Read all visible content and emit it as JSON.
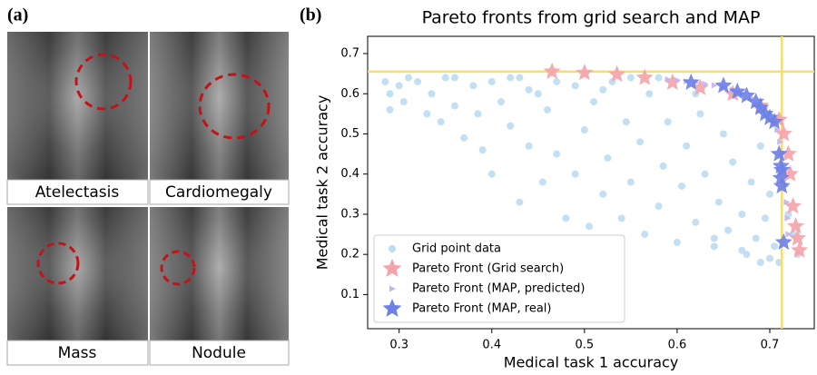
{
  "panel_a": {
    "label": "(a)",
    "images": [
      {
        "caption": "Atelectasis"
      },
      {
        "caption": "Cardiomegaly"
      },
      {
        "caption": "Mass"
      },
      {
        "caption": "Nodule"
      }
    ]
  },
  "chart_data": {
    "type": "scatter",
    "panel_label": "(b)",
    "title": "Pareto fronts from grid search and MAP",
    "x_label": "Medical task 1 accuracy",
    "y_label": "Medical task 2 accuracy",
    "xlim": [
      0.266,
      0.748
    ],
    "ylim": [
      0.015,
      0.743
    ],
    "xticks": [
      0.3,
      0.4,
      0.5,
      0.6,
      0.7
    ],
    "yticks": [
      0.1,
      0.2,
      0.3,
      0.4,
      0.5,
      0.6,
      0.7
    ],
    "grid": false,
    "legend": "lower left",
    "reference_lines": [
      {
        "axis": "x",
        "value": 0.713,
        "color": "#f7dc6f"
      },
      {
        "axis": "y",
        "value": 0.655,
        "color": "#f7dc6f"
      }
    ],
    "series": [
      {
        "name": "Grid point data",
        "color": "#bcdcf3",
        "marker": "circle",
        "x": [
          0.285,
          0.29,
          0.29,
          0.3,
          0.305,
          0.31,
          0.32,
          0.33,
          0.335,
          0.345,
          0.35,
          0.36,
          0.37,
          0.38,
          0.385,
          0.39,
          0.4,
          0.4,
          0.41,
          0.42,
          0.43,
          0.43,
          0.44,
          0.45,
          0.455,
          0.46,
          0.47,
          0.48,
          0.49,
          0.49,
          0.5,
          0.505,
          0.51,
          0.52,
          0.525,
          0.53,
          0.54,
          0.545,
          0.55,
          0.56,
          0.565,
          0.57,
          0.58,
          0.585,
          0.59,
          0.6,
          0.605,
          0.61,
          0.62,
          0.625,
          0.63,
          0.64,
          0.645,
          0.65,
          0.655,
          0.66,
          0.67,
          0.675,
          0.68,
          0.685,
          0.69,
          0.695,
          0.7,
          0.7,
          0.705,
          0.71,
          0.72,
          0.725,
          0.73,
          0.69,
          0.67,
          0.64,
          0.62,
          0.58,
          0.55,
          0.52,
          0.47,
          0.44,
          0.42,
          0.36
        ],
        "values": [
          0.63,
          0.6,
          0.56,
          0.62,
          0.58,
          0.64,
          0.63,
          0.55,
          0.6,
          0.53,
          0.64,
          0.57,
          0.49,
          0.62,
          0.55,
          0.46,
          0.63,
          0.4,
          0.58,
          0.52,
          0.64,
          0.33,
          0.47,
          0.6,
          0.38,
          0.56,
          0.45,
          0.29,
          0.62,
          0.4,
          0.51,
          0.27,
          0.58,
          0.35,
          0.44,
          0.63,
          0.29,
          0.53,
          0.38,
          0.48,
          0.25,
          0.6,
          0.32,
          0.42,
          0.53,
          0.23,
          0.37,
          0.47,
          0.28,
          0.55,
          0.4,
          0.22,
          0.33,
          0.5,
          0.26,
          0.43,
          0.3,
          0.2,
          0.38,
          0.24,
          0.47,
          0.29,
          0.19,
          0.35,
          0.22,
          0.18,
          0.3,
          0.25,
          0.2,
          0.18,
          0.21,
          0.24,
          0.6,
          0.64,
          0.64,
          0.61,
          0.63,
          0.61,
          0.64,
          0.64
        ]
      },
      {
        "name": "Pareto Front (Grid search)",
        "color": "#f4a3a8",
        "marker": "star",
        "x": [
          0.465,
          0.5,
          0.535,
          0.565,
          0.595,
          0.625,
          0.66,
          0.69,
          0.71,
          0.715,
          0.72,
          0.722,
          0.725,
          0.728,
          0.73,
          0.732
        ],
        "values": [
          0.655,
          0.652,
          0.648,
          0.64,
          0.628,
          0.615,
          0.6,
          0.57,
          0.535,
          0.5,
          0.45,
          0.4,
          0.32,
          0.27,
          0.24,
          0.21
        ]
      },
      {
        "name": "Pareto Front (MAP, predicted)",
        "color": "#c2b4f2",
        "marker": "triangle",
        "x": [
          0.59,
          0.6,
          0.61,
          0.62,
          0.63,
          0.64,
          0.65,
          0.66,
          0.67,
          0.68,
          0.69,
          0.695,
          0.7,
          0.705,
          0.708,
          0.711,
          0.713,
          0.715,
          0.717,
          0.718,
          0.719,
          0.72
        ],
        "values": [
          0.636,
          0.634,
          0.631,
          0.628,
          0.625,
          0.621,
          0.616,
          0.61,
          0.601,
          0.59,
          0.575,
          0.565,
          0.55,
          0.53,
          0.51,
          0.48,
          0.45,
          0.41,
          0.37,
          0.33,
          0.29,
          0.25
        ]
      },
      {
        "name": "Pareto Front (MAP, real)",
        "color": "#6c80e6",
        "marker": "star",
        "x": [
          0.615,
          0.65,
          0.665,
          0.675,
          0.685,
          0.69,
          0.695,
          0.7,
          0.705,
          0.71,
          0.712,
          0.713,
          0.712,
          0.713,
          0.715
        ],
        "values": [
          0.628,
          0.62,
          0.605,
          0.595,
          0.58,
          0.565,
          0.55,
          0.54,
          0.53,
          0.45,
          0.42,
          0.41,
          0.39,
          0.37,
          0.23
        ]
      }
    ]
  }
}
